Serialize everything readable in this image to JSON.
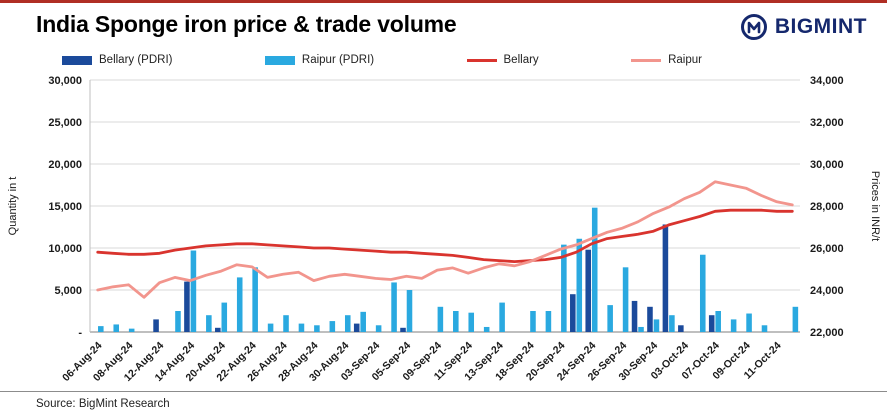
{
  "header": {
    "title": "India Sponge iron price & trade volume",
    "brand": "BIGMINT"
  },
  "source": "Source: BigMint Research",
  "colors": {
    "top_bar": "#b02e24",
    "brand": "#15286d",
    "grid": "#d9d9d9",
    "baseline": "#7f7f7f"
  },
  "chart_data": {
    "type": "bar+line combo",
    "title": "India Sponge iron price & trade volume",
    "left_axis": {
      "title": "Quantity in t",
      "min": 0,
      "max": 30000,
      "ticks": [
        "30,000",
        "25,000",
        "20,000",
        "15,000",
        "10,000",
        "5,000",
        "-"
      ]
    },
    "right_axis": {
      "title": "Prices in INR/t",
      "min": 22000,
      "max": 34000,
      "ticks": [
        "34,000",
        "32,000",
        "30,000",
        "28,000",
        "26,000",
        "24,000",
        "22,000"
      ]
    },
    "grid": true,
    "legend_position": "top",
    "x_labels": [
      "06-Aug-24",
      "",
      "08-Aug-24",
      "",
      "12-Aug-24",
      "",
      "14-Aug-24",
      "",
      "20-Aug-24",
      "",
      "22-Aug-24",
      "",
      "26-Aug-24",
      "",
      "28-Aug-24",
      "",
      "30-Aug-24",
      "",
      "03-Sep-24",
      "",
      "05-Sep-24",
      "",
      "09-Sep-24",
      "",
      "11-Sep-24",
      "",
      "13-Sep-24",
      "",
      "18-Sep-24",
      "",
      "20-Sep-24",
      "",
      "24-Sep-24",
      "",
      "26-Sep-24",
      "",
      "30-Sep-24",
      "",
      "03-Oct-24",
      "",
      "07-Oct-24",
      "",
      "09-Oct-24",
      "",
      "11-Oct-24",
      ""
    ],
    "series": [
      {
        "name": "Bellary (PDRI)",
        "type": "bar",
        "axis": "left",
        "color": "#1b4a9b",
        "values": [
          0,
          0,
          0,
          0,
          1500,
          0,
          6000,
          0,
          500,
          0,
          0,
          0,
          0,
          0,
          0,
          0,
          0,
          1000,
          0,
          0,
          500,
          0,
          0,
          0,
          0,
          0,
          0,
          0,
          0,
          0,
          0,
          4500,
          9800,
          0,
          0,
          3700,
          3000,
          12800,
          800,
          0,
          2000,
          0,
          0,
          0,
          0,
          0
        ]
      },
      {
        "name": "Raipur (PDRI)",
        "type": "bar",
        "axis": "left",
        "color": "#2aa9e0",
        "values": [
          700,
          900,
          400,
          0,
          0,
          2500,
          9700,
          2000,
          3500,
          6500,
          7700,
          1000,
          2000,
          1000,
          800,
          1300,
          2000,
          2400,
          800,
          5900,
          5000,
          0,
          3000,
          2500,
          2300,
          600,
          3500,
          0,
          2500,
          2500,
          10400,
          11100,
          14800,
          3200,
          7700,
          600,
          1500,
          2000,
          0,
          9200,
          2500,
          1500,
          2200,
          800,
          0,
          3000
        ]
      },
      {
        "name": "Bellary",
        "type": "line",
        "axis": "right",
        "color": "#d9342e",
        "values": [
          25800,
          25750,
          25700,
          25700,
          25750,
          25900,
          26000,
          26100,
          26150,
          26200,
          26200,
          26150,
          26100,
          26050,
          26000,
          26000,
          25950,
          25900,
          25850,
          25800,
          25800,
          25750,
          25700,
          25650,
          25550,
          25450,
          25400,
          25350,
          25400,
          25450,
          25550,
          25800,
          26200,
          26450,
          26550,
          26650,
          26800,
          27100,
          27300,
          27500,
          27750,
          27800,
          27800,
          27800,
          27750,
          27750
        ]
      },
      {
        "name": "Raipur",
        "type": "line",
        "axis": "right",
        "color": "#f2958d",
        "values": [
          24000,
          24150,
          24250,
          23650,
          24350,
          24600,
          24450,
          24700,
          24900,
          25200,
          25100,
          24600,
          24750,
          24850,
          24450,
          24650,
          24750,
          24650,
          24550,
          24500,
          24650,
          24550,
          24950,
          25050,
          24800,
          25050,
          25250,
          25150,
          25350,
          25650,
          25950,
          26150,
          26450,
          26750,
          26950,
          27250,
          27650,
          27950,
          28350,
          28650,
          29150,
          29000,
          28850,
          28500,
          28200,
          28050
        ]
      }
    ]
  }
}
